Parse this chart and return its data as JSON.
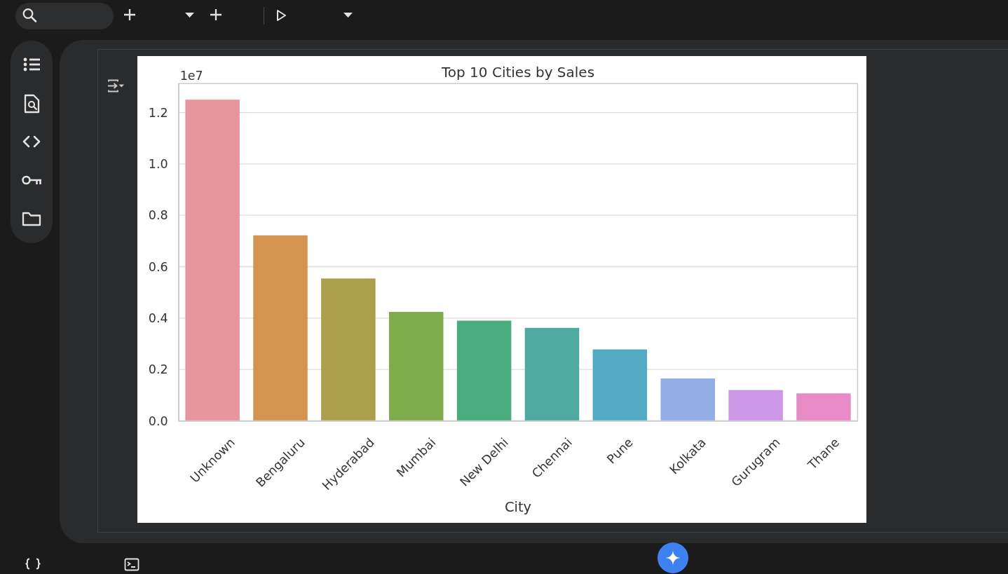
{
  "chart_data": {
    "type": "bar",
    "title": "Top 10 Cities by Sales",
    "xlabel": "City",
    "categories": [
      "Unknown",
      "Bengaluru",
      "Hyderabad",
      "Mumbai",
      "New Delhi",
      "Chennai",
      "Pune",
      "Kolkata",
      "Gurugram",
      "Thane"
    ],
    "values": [
      1.25,
      0.722,
      0.554,
      0.424,
      0.39,
      0.362,
      0.278,
      0.165,
      0.12,
      0.107
    ],
    "colors": [
      "#e8959f",
      "#d4934f",
      "#ab9f4c",
      "#7fab4b",
      "#4aad7d",
      "#4ea9a0",
      "#52aac4",
      "#93aee5",
      "#cd97e8",
      "#e88bc7"
    ],
    "ylim": [
      0,
      1.3125
    ],
    "yticks": [
      {
        "value": 0,
        "label": "0.0"
      },
      0.2,
      0.4,
      0.6,
      0.8,
      {
        "value": 1,
        "label": "1.0"
      },
      1.2
    ],
    "grid": "y",
    "annotations": [
      "1e7"
    ]
  }
}
